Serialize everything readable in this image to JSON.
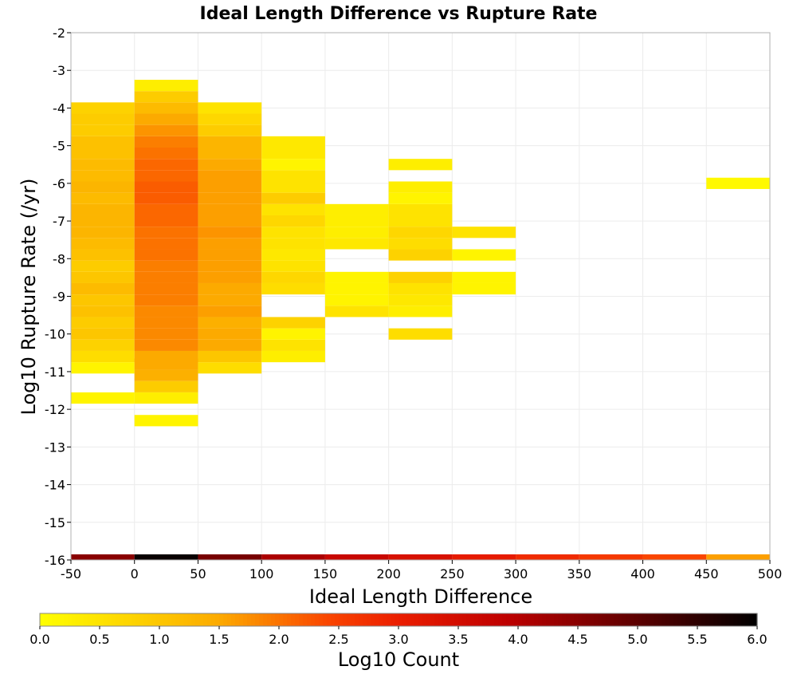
{
  "chart_data": {
    "type": "heatmap",
    "title": "Ideal Length Difference vs Rupture Rate",
    "xlabel": "Ideal Length Difference",
    "ylabel": "Log10 Rupture Rate (/yr)",
    "xlim": [
      -50,
      500
    ],
    "ylim": [
      -16,
      -2
    ],
    "xticks": [
      -50,
      0,
      50,
      100,
      150,
      200,
      250,
      300,
      350,
      400,
      450,
      500
    ],
    "yticks": [
      -2,
      -3,
      -4,
      -5,
      -6,
      -7,
      -8,
      -9,
      -10,
      -11,
      -12,
      -13,
      -14,
      -15,
      -16
    ],
    "grid": true,
    "bin_width_x": 50,
    "bin_height_y": 0.3,
    "colorbar": {
      "label": "Log10 Count",
      "min": 0.0,
      "max": 6.0,
      "ticks": [
        "0.0",
        "0.5",
        "1.0",
        "1.5",
        "2.0",
        "2.5",
        "3.0",
        "3.5",
        "4.0",
        "4.5",
        "5.0",
        "5.5",
        "6.0"
      ],
      "colormap": "yellow-orange-red-black"
    },
    "bottom_strip": {
      "description_values": [
        4.5,
        5.9,
        4.7,
        4.1,
        3.7,
        3.4,
        3.1,
        2.8,
        2.6,
        2.4,
        1.6
      ]
    },
    "columns": [
      {
        "x": -25,
        "cells": [
          {
            "y": -11.7,
            "v": 0.2
          },
          {
            "y": -10.9,
            "v": 0.2
          },
          {
            "y": -10.6,
            "v": 0.6
          },
          {
            "y": -10.3,
            "v": 0.8
          },
          {
            "y": -10.0,
            "v": 1.0
          },
          {
            "y": -9.7,
            "v": 0.9
          },
          {
            "y": -9.4,
            "v": 1.1
          },
          {
            "y": -9.1,
            "v": 1.0
          },
          {
            "y": -8.8,
            "v": 1.2
          },
          {
            "y": -8.5,
            "v": 1.0
          },
          {
            "y": -8.2,
            "v": 0.9
          },
          {
            "y": -7.9,
            "v": 1.1
          },
          {
            "y": -7.6,
            "v": 1.2
          },
          {
            "y": -7.3,
            "v": 1.3
          },
          {
            "y": -7.0,
            "v": 1.3
          },
          {
            "y": -6.7,
            "v": 1.3
          },
          {
            "y": -6.4,
            "v": 1.2
          },
          {
            "y": -6.1,
            "v": 1.3
          },
          {
            "y": -5.8,
            "v": 1.2
          },
          {
            "y": -5.5,
            "v": 1.2
          },
          {
            "y": -5.2,
            "v": 1.1
          },
          {
            "y": -4.9,
            "v": 1.1
          },
          {
            "y": -4.6,
            "v": 0.9
          },
          {
            "y": -4.3,
            "v": 0.9
          },
          {
            "y": -4.0,
            "v": 0.8
          }
        ]
      },
      {
        "x": 25,
        "cells": [
          {
            "y": -12.3,
            "v": 0.2
          },
          {
            "y": -11.7,
            "v": 0.3
          },
          {
            "y": -11.4,
            "v": 0.9
          },
          {
            "y": -11.1,
            "v": 1.4
          },
          {
            "y": -10.8,
            "v": 1.5
          },
          {
            "y": -10.6,
            "v": 1.5
          },
          {
            "y": -10.3,
            "v": 1.8
          },
          {
            "y": -10.0,
            "v": 1.8
          },
          {
            "y": -9.7,
            "v": 1.8
          },
          {
            "y": -9.4,
            "v": 1.8
          },
          {
            "y": -9.1,
            "v": 1.9
          },
          {
            "y": -8.8,
            "v": 1.9
          },
          {
            "y": -8.5,
            "v": 1.9
          },
          {
            "y": -8.2,
            "v": 1.9
          },
          {
            "y": -7.9,
            "v": 2.0
          },
          {
            "y": -7.6,
            "v": 2.0
          },
          {
            "y": -7.3,
            "v": 2.0
          },
          {
            "y": -7.0,
            "v": 2.1
          },
          {
            "y": -6.7,
            "v": 2.1
          },
          {
            "y": -6.4,
            "v": 2.2
          },
          {
            "y": -6.1,
            "v": 2.2
          },
          {
            "y": -5.8,
            "v": 2.1
          },
          {
            "y": -5.5,
            "v": 2.1
          },
          {
            "y": -5.2,
            "v": 2.0
          },
          {
            "y": -4.9,
            "v": 1.9
          },
          {
            "y": -4.6,
            "v": 1.7
          },
          {
            "y": -4.3,
            "v": 1.5
          },
          {
            "y": -4.0,
            "v": 1.2
          },
          {
            "y": -3.7,
            "v": 0.9
          },
          {
            "y": -3.4,
            "v": 0.3
          }
        ]
      },
      {
        "x": 75,
        "cells": [
          {
            "y": -10.9,
            "v": 0.6
          },
          {
            "y": -10.6,
            "v": 1.0
          },
          {
            "y": -10.3,
            "v": 1.5
          },
          {
            "y": -10.0,
            "v": 1.5
          },
          {
            "y": -9.7,
            "v": 1.4
          },
          {
            "y": -9.4,
            "v": 1.6
          },
          {
            "y": -9.1,
            "v": 1.5
          },
          {
            "y": -8.8,
            "v": 1.5
          },
          {
            "y": -8.5,
            "v": 1.6
          },
          {
            "y": -8.2,
            "v": 1.6
          },
          {
            "y": -7.9,
            "v": 1.6
          },
          {
            "y": -7.6,
            "v": 1.6
          },
          {
            "y": -7.3,
            "v": 1.7
          },
          {
            "y": -7.0,
            "v": 1.6
          },
          {
            "y": -6.7,
            "v": 1.6
          },
          {
            "y": -6.4,
            "v": 1.6
          },
          {
            "y": -6.1,
            "v": 1.6
          },
          {
            "y": -5.8,
            "v": 1.6
          },
          {
            "y": -5.5,
            "v": 1.5
          },
          {
            "y": -5.2,
            "v": 1.3
          },
          {
            "y": -4.9,
            "v": 1.3
          },
          {
            "y": -4.6,
            "v": 0.9
          },
          {
            "y": -4.3,
            "v": 0.7
          },
          {
            "y": -4.0,
            "v": 0.5
          }
        ]
      },
      {
        "x": 125,
        "cells": [
          {
            "y": -10.6,
            "v": 0.3
          },
          {
            "y": -10.3,
            "v": 0.5
          },
          {
            "y": -10.0,
            "v": 0.2
          },
          {
            "y": -9.7,
            "v": 0.8
          },
          {
            "y": -8.8,
            "v": 0.6
          },
          {
            "y": -8.5,
            "v": 0.7
          },
          {
            "y": -8.2,
            "v": 0.5
          },
          {
            "y": -7.9,
            "v": 0.4
          },
          {
            "y": -7.6,
            "v": 0.5
          },
          {
            "y": -7.3,
            "v": 0.5
          },
          {
            "y": -7.0,
            "v": 0.7
          },
          {
            "y": -6.7,
            "v": 0.5
          },
          {
            "y": -6.4,
            "v": 0.9
          },
          {
            "y": -6.1,
            "v": 0.5
          },
          {
            "y": -5.8,
            "v": 0.5
          },
          {
            "y": -5.5,
            "v": 0.2
          },
          {
            "y": -5.2,
            "v": 0.4
          },
          {
            "y": -4.9,
            "v": 0.4
          }
        ]
      },
      {
        "x": 175,
        "cells": [
          {
            "y": -9.4,
            "v": 0.5
          },
          {
            "y": -9.1,
            "v": 0.2
          },
          {
            "y": -8.8,
            "v": 0.2
          },
          {
            "y": -8.5,
            "v": 0.2
          },
          {
            "y": -7.6,
            "v": 0.4
          },
          {
            "y": -7.3,
            "v": 0.3
          },
          {
            "y": -7.0,
            "v": 0.3
          },
          {
            "y": -6.7,
            "v": 0.3
          }
        ]
      },
      {
        "x": 225,
        "cells": [
          {
            "y": -10.0,
            "v": 0.6
          },
          {
            "y": -9.4,
            "v": 0.3
          },
          {
            "y": -9.1,
            "v": 0.4
          },
          {
            "y": -8.8,
            "v": 0.5
          },
          {
            "y": -8.5,
            "v": 0.8
          },
          {
            "y": -7.9,
            "v": 0.8
          },
          {
            "y": -7.6,
            "v": 0.6
          },
          {
            "y": -7.3,
            "v": 0.7
          },
          {
            "y": -7.0,
            "v": 0.5
          },
          {
            "y": -6.7,
            "v": 0.5
          },
          {
            "y": -6.4,
            "v": 0.2
          },
          {
            "y": -6.1,
            "v": 0.3
          },
          {
            "y": -5.5,
            "v": 0.3
          }
        ]
      },
      {
        "x": 275,
        "cells": [
          {
            "y": -8.8,
            "v": 0.2
          },
          {
            "y": -8.5,
            "v": 0.2
          },
          {
            "y": -7.9,
            "v": 0.2
          },
          {
            "y": -7.3,
            "v": 0.5
          }
        ]
      },
      {
        "x": 475,
        "cells": [
          {
            "y": -6.0,
            "v": 0.1
          }
        ]
      }
    ]
  }
}
